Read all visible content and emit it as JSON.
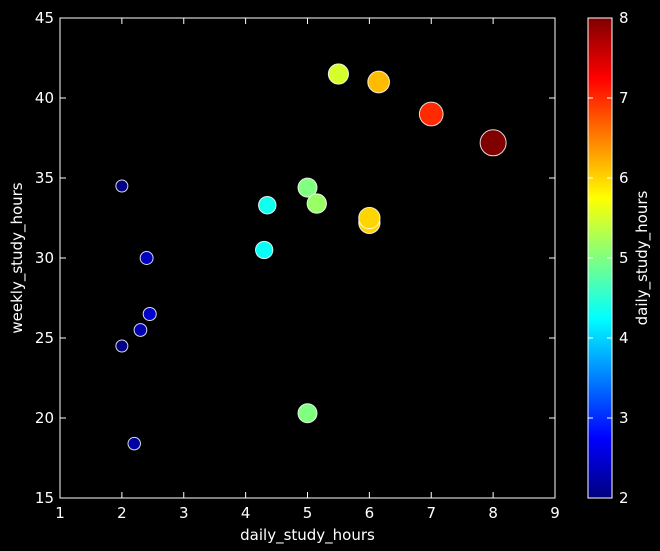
{
  "chart_data": {
    "type": "scatter",
    "title": "",
    "xlabel": "daily_study_hours",
    "ylabel": "weekly_study_hours",
    "xlim": [
      1,
      9
    ],
    "ylim": [
      15,
      45
    ],
    "x_ticks": [
      "1",
      "2",
      "3",
      "4",
      "5",
      "6",
      "7",
      "8",
      "9"
    ],
    "y_ticks": [
      "15",
      "20",
      "25",
      "30",
      "35",
      "40",
      "45"
    ],
    "grid": false,
    "background": "#000000",
    "colormap": "jet",
    "size_encodes": "daily_study_hours",
    "colorbar": {
      "label": "daily_study_hours",
      "range": [
        2,
        8
      ],
      "ticks": [
        "2",
        "3",
        "4",
        "5",
        "6",
        "7",
        "8"
      ]
    },
    "points": [
      {
        "x": 2.0,
        "y": 34.5,
        "c": 2.0
      },
      {
        "x": 2.0,
        "y": 24.5,
        "c": 2.0
      },
      {
        "x": 2.2,
        "y": 18.4,
        "c": 2.2
      },
      {
        "x": 2.3,
        "y": 25.5,
        "c": 2.3
      },
      {
        "x": 2.4,
        "y": 30.0,
        "c": 2.4
      },
      {
        "x": 2.45,
        "y": 26.5,
        "c": 2.45
      },
      {
        "x": 4.3,
        "y": 30.5,
        "c": 4.3
      },
      {
        "x": 4.35,
        "y": 33.3,
        "c": 4.35
      },
      {
        "x": 5.0,
        "y": 34.4,
        "c": 5.0
      },
      {
        "x": 5.0,
        "y": 20.3,
        "c": 5.0
      },
      {
        "x": 5.15,
        "y": 33.4,
        "c": 5.15
      },
      {
        "x": 5.5,
        "y": 41.5,
        "c": 5.5
      },
      {
        "x": 6.0,
        "y": 32.2,
        "c": 6.0
      },
      {
        "x": 6.0,
        "y": 32.5,
        "c": 6.0
      },
      {
        "x": 6.15,
        "y": 41.0,
        "c": 6.15
      },
      {
        "x": 7.0,
        "y": 39.0,
        "c": 7.0
      },
      {
        "x": 8.0,
        "y": 37.2,
        "c": 8.0
      }
    ]
  }
}
